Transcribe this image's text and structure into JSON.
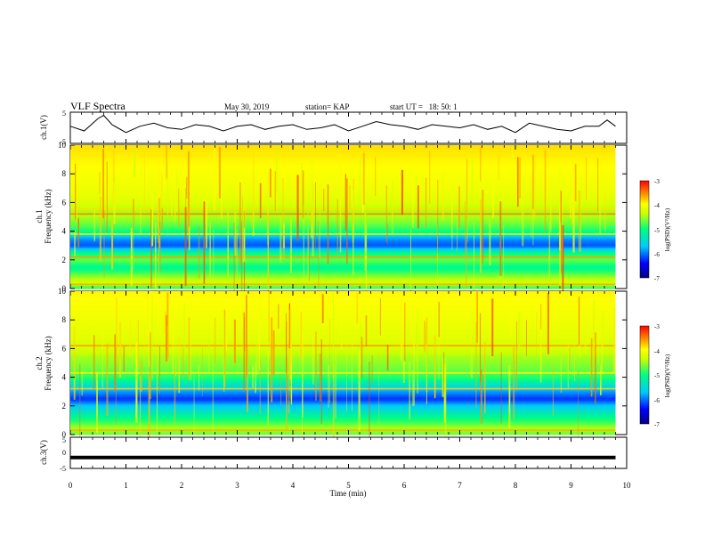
{
  "header": {
    "title": "VLF Spectra",
    "date": "May 30, 2019",
    "station": "station= KAP",
    "start_label": "start  UT  =",
    "start_time": "18: 50: 1"
  },
  "chart_data": [
    {
      "type": "line",
      "name": "ch1-waveform",
      "ylabel": "ch.1(V)",
      "ylim": [
        -5,
        5
      ],
      "yticks": [
        "5",
        "-5"
      ],
      "xlim": [
        0,
        10
      ],
      "x": [
        0,
        0.25,
        0.5,
        0.6,
        0.75,
        1.0,
        1.25,
        1.5,
        1.75,
        2.0,
        2.25,
        2.5,
        2.75,
        3.0,
        3.25,
        3.5,
        3.75,
        4.0,
        4.25,
        4.5,
        4.75,
        5.0,
        5.25,
        5.5,
        5.75,
        6.0,
        6.25,
        6.5,
        6.75,
        7.0,
        7.25,
        7.5,
        7.75,
        8.0,
        8.25,
        8.5,
        8.75,
        9.0,
        9.25,
        9.5,
        9.65,
        9.8
      ],
      "y": [
        0.5,
        -1.0,
        3.0,
        4.0,
        1.0,
        -1.5,
        0.5,
        1.5,
        0.0,
        -0.5,
        1.0,
        0.5,
        -1.0,
        0.5,
        1.0,
        -0.5,
        0.5,
        1.0,
        -0.5,
        0.0,
        1.0,
        -1.0,
        0.5,
        2.0,
        1.0,
        0.5,
        -0.5,
        1.0,
        0.5,
        0.0,
        1.0,
        -0.5,
        0.5,
        -1.5,
        1.5,
        0.5,
        -0.5,
        -1.0,
        0.5,
        0.5,
        2.5,
        0.5
      ]
    },
    {
      "type": "heatmap",
      "name": "ch1-spectrogram",
      "ylabel": "ch.1",
      "ylabel2": "Frequency (kHz)",
      "ylim": [
        0,
        10
      ],
      "yticks": [
        "0",
        "2",
        "4",
        "6",
        "8",
        "10"
      ],
      "xlim": [
        0,
        9.8
      ],
      "colorbar": {
        "label": "log(PSD)(V²/Hz)",
        "range": [
          -7,
          -3
        ],
        "ticks": [
          "-3",
          "-4",
          "-5",
          "-6",
          "-7"
        ]
      },
      "profile_khz": [
        0,
        0.5,
        1.0,
        1.5,
        2.0,
        2.5,
        3.0,
        3.5,
        4.0,
        4.5,
        5.0,
        5.5,
        6.0,
        7.0,
        8.0,
        9.0,
        10.0
      ],
      "profile_log_psd": [
        -5.2,
        -4.6,
        -5.0,
        -5.4,
        -5.0,
        -5.3,
        -6.2,
        -6.0,
        -5.3,
        -5.0,
        -4.8,
        -4.8,
        -4.5,
        -4.3,
        -4.2,
        -4.1,
        -4.0
      ],
      "bands": [
        {
          "khz": 0.3,
          "log_psd": -3.8
        },
        {
          "khz": 2.2,
          "log_psd": -3.7
        },
        {
          "khz": 3.8,
          "log_psd": -4.2
        },
        {
          "khz": 5.2,
          "log_psd": -3.6
        },
        {
          "khz": 5.5,
          "log_psd": -4.0
        }
      ]
    },
    {
      "type": "heatmap",
      "name": "ch2-spectrogram",
      "ylabel": "ch.2",
      "ylabel2": "Frequency (kHz)",
      "ylim": [
        0,
        10
      ],
      "yticks": [
        "0",
        "2",
        "4",
        "6",
        "8",
        "10"
      ],
      "xlim": [
        0,
        9.8
      ],
      "colorbar": {
        "label": "log(PSD)(V²/Hz)",
        "range": [
          -7,
          -3
        ],
        "ticks": [
          "-3",
          "-4",
          "-5",
          "-6",
          "-7"
        ]
      },
      "profile_khz": [
        0,
        0.5,
        1.0,
        1.5,
        2.0,
        2.5,
        3.0,
        3.5,
        4.0,
        4.5,
        5.0,
        5.5,
        6.0,
        7.0,
        8.0,
        9.0,
        10.0
      ],
      "profile_log_psd": [
        -5.0,
        -4.8,
        -5.2,
        -5.5,
        -5.8,
        -6.3,
        -6.0,
        -5.6,
        -5.2,
        -5.0,
        -4.9,
        -4.8,
        -4.6,
        -4.4,
        -4.3,
        -4.2,
        -4.1
      ],
      "bands": [
        {
          "khz": 0.3,
          "log_psd": -3.8
        },
        {
          "khz": 3.2,
          "log_psd": -3.9
        },
        {
          "khz": 4.3,
          "log_psd": -4.1
        },
        {
          "khz": 6.2,
          "log_psd": -3.7
        }
      ]
    },
    {
      "type": "line",
      "name": "ch3-waveform",
      "ylabel": "ch.3(V)",
      "ylim": [
        -5,
        5
      ],
      "yticks": [
        "5",
        "0",
        "-5"
      ],
      "xlim": [
        0,
        10
      ],
      "x": [
        0,
        9.8
      ],
      "y": [
        -1.5,
        -1.5
      ]
    }
  ],
  "xaxis": {
    "label": "Time (min)",
    "ticks": [
      "0",
      "1",
      "2",
      "3",
      "4",
      "5",
      "6",
      "7",
      "8",
      "9",
      "10"
    ]
  },
  "colors": {
    "colormap": [
      "#000080",
      "#0000ff",
      "#00c8ff",
      "#00ff80",
      "#c8ff00",
      "#ffff00",
      "#ff8000",
      "#ff0000"
    ],
    "line": "#000000"
  }
}
